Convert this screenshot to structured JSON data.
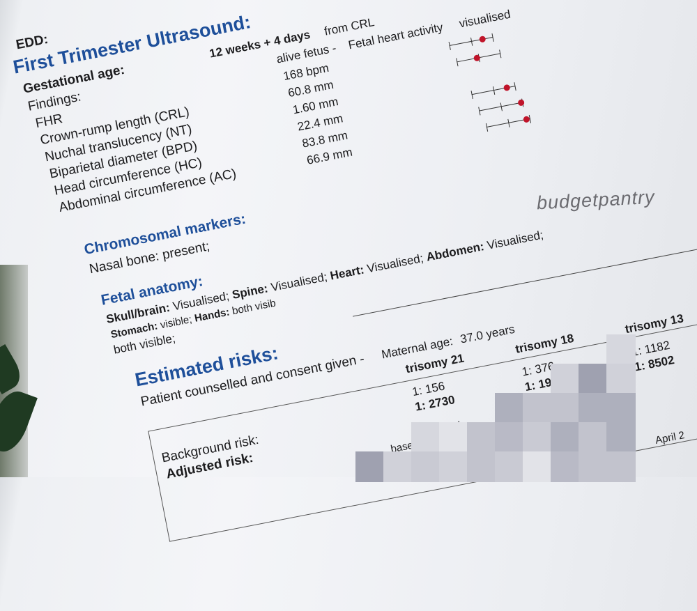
{
  "report": {
    "top_cut": "EDD:",
    "title": "First Trimester Ultrasound:",
    "gestational_age": {
      "label": "Gestational age:",
      "value": "12 weeks + 4 days",
      "method": "from CRL"
    },
    "findings": {
      "label": "Findings:",
      "value": "alive fetus -",
      "extra": "Fetal heart activity",
      "extra_value": "visualised"
    },
    "measurements": [
      {
        "label": "FHR",
        "value": "168 bpm",
        "percentile_marker": 0.75
      },
      {
        "label": "Crown-rump length (CRL)",
        "value": "60.8 mm",
        "percentile_marker": 0.45
      },
      {
        "label": "Nuchal translucency (NT)",
        "value": "1.60 mm"
      },
      {
        "label": "Biparietal diameter (BPD)",
        "value": "22.4 mm",
        "percentile_marker": 0.8
      },
      {
        "label": "Head circumference (HC)",
        "value": "83.8 mm",
        "percentile_marker": 0.95
      },
      {
        "label": "Abdominal circumference (AC)",
        "value": "66.9 mm",
        "percentile_marker": 0.9
      }
    ],
    "marker_color": "#c0142a",
    "heading_color": "#1e4f9a",
    "chromosomal": {
      "title": "Chromosomal markers:",
      "text": "Nasal bone: present;"
    },
    "anatomy": {
      "title": "Fetal anatomy:",
      "items": [
        {
          "k": "Skull/brain:",
          "v": "Visualised;"
        },
        {
          "k": "Spine:",
          "v": "Visualised;"
        },
        {
          "k": "Heart:",
          "v": "Visualised;"
        },
        {
          "k": "Abdomen:",
          "v": "Visualised;"
        },
        {
          "k": "Stomach:",
          "v": "visible;"
        },
        {
          "k": "Hands:",
          "v": "both visib"
        }
      ],
      "continuation": "both visible;"
    },
    "risks": {
      "title": "Estimated risks:",
      "counselled": "Patient counselled and consent given -",
      "maternal_age_label": "Maternal age:",
      "maternal_age": "37.0 years",
      "columns": [
        {
          "name": "trisomy 21",
          "background": "1: 156",
          "adjusted": "1: 2730"
        },
        {
          "name": "trisomy 18",
          "background": "1: 376",
          "adjusted": "1: 1909"
        },
        {
          "name": "trisomy 13",
          "background": "1: 1182",
          "adjusted": "1: 8502"
        }
      ],
      "background_label": "Background risk:",
      "adjusted_label": "Adjusted risk:",
      "fragments": [
        "based",
        "nal",
        "April 2"
      ]
    }
  },
  "watermark": "budgetpantry"
}
